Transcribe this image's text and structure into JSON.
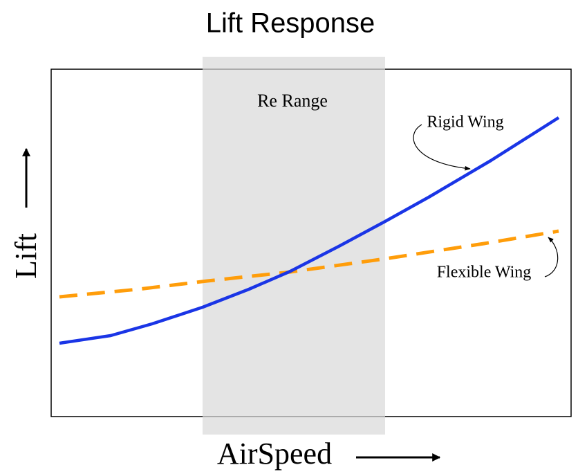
{
  "title": "Lift Response",
  "band_label": "Re Range",
  "curves": [
    {
      "label": "Rigid Wing"
    },
    {
      "label": "Flexible Wing"
    }
  ],
  "axes": {
    "x_label": "AirSpeed",
    "y_label": "Lift"
  }
}
